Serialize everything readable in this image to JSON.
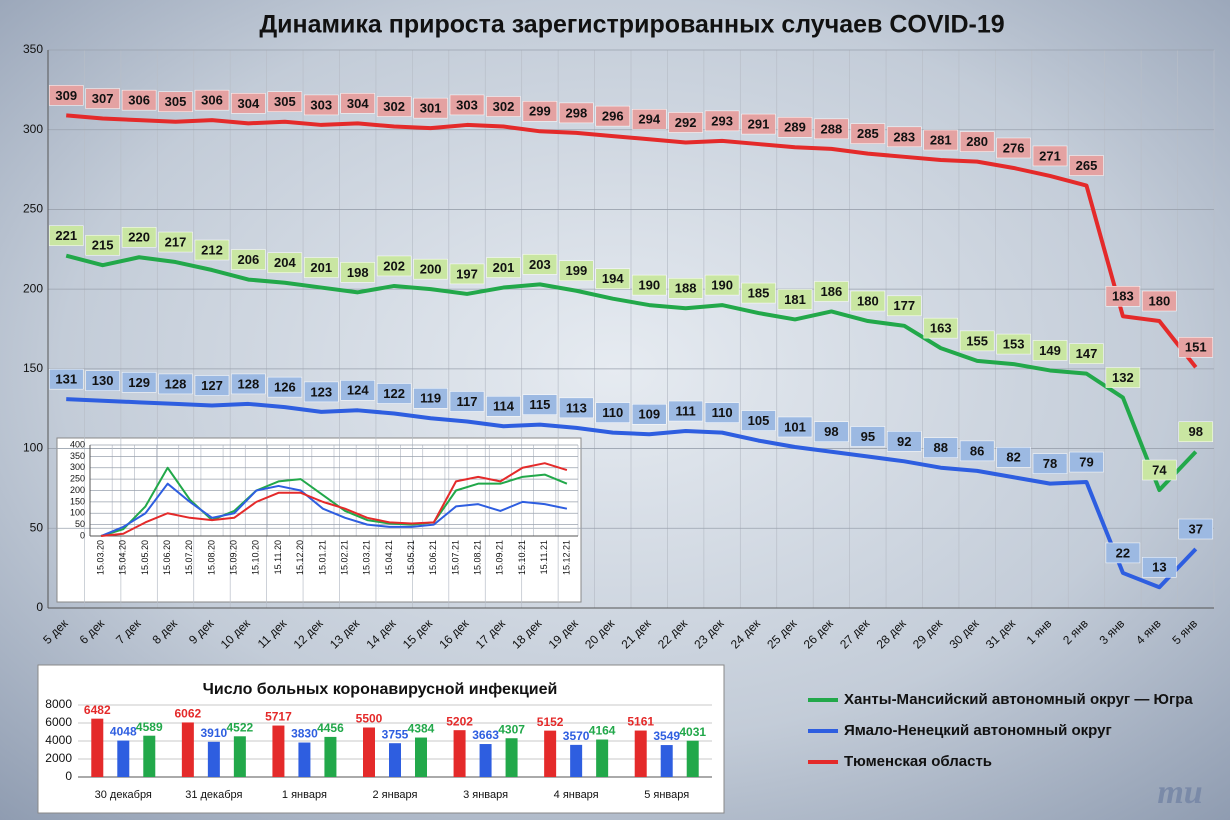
{
  "chart_data": [
    {
      "type": "line",
      "title": "Динамика прироста зарегистрированных случаев COVID-19",
      "categories": [
        "5 дек",
        "6 дек",
        "7 дек",
        "8 дек",
        "9 дек",
        "10 дек",
        "11 дек",
        "12 дек",
        "13 дек",
        "14 дек",
        "15 дек",
        "16 дек",
        "17 дек",
        "18 дек",
        "19 дек",
        "20 дек",
        "21 дек",
        "22 дек",
        "23 дек",
        "24 дек",
        "25 дек",
        "26 дек",
        "27 дек",
        "28 дек",
        "29 дек",
        "30 дек",
        "31 дек",
        "1 янв",
        "2 янв",
        "3 янв",
        "4 янв",
        "5 янв"
      ],
      "series": [
        {
          "name": "Ханты-Мансийский автономный округ — Югра",
          "color": "#22a84a",
          "label_color": "#c9e6a2",
          "values": [
            221,
            215,
            220,
            217,
            212,
            206,
            204,
            201,
            198,
            202,
            200,
            197,
            201,
            203,
            199,
            194,
            190,
            188,
            190,
            185,
            181,
            186,
            180,
            177,
            163,
            155,
            153,
            149,
            147,
            132,
            74,
            98
          ]
        },
        {
          "name": "Ямало-Ненецкий автономный округ",
          "color": "#2e5ee0",
          "label_color": "#9cb9e2",
          "values": [
            131,
            130,
            129,
            128,
            127,
            128,
            126,
            123,
            124,
            122,
            119,
            117,
            114,
            115,
            113,
            110,
            109,
            111,
            110,
            105,
            101,
            98,
            95,
            92,
            88,
            86,
            82,
            78,
            79,
            22,
            13,
            37
          ]
        },
        {
          "name": "Тюменская область",
          "color": "#e42a2a",
          "label_color": "#e4a2a2",
          "values": [
            309,
            307,
            306,
            305,
            306,
            304,
            305,
            303,
            304,
            302,
            301,
            303,
            302,
            299,
            298,
            296,
            294,
            292,
            293,
            291,
            289,
            288,
            285,
            283,
            281,
            280,
            276,
            271,
            265,
            183,
            180,
            151
          ]
        }
      ],
      "ylim": [
        0,
        350
      ],
      "yticks": [
        0,
        50,
        100,
        150,
        200,
        250,
        300,
        350
      ],
      "grid": true,
      "legend_position": "bottom-right"
    },
    {
      "type": "line",
      "categories": [
        "15.03.20",
        "15.04.20",
        "15.05.20",
        "15.06.20",
        "15.07.20",
        "15.08.20",
        "15.09.20",
        "15.10.20",
        "15.11.20",
        "15.12.20",
        "15.01.21",
        "15.02.21",
        "15.03.21",
        "15.04.21",
        "15.05.21",
        "15.06.21",
        "15.07.21",
        "15.08.21",
        "15.09.21",
        "15.10.21",
        "15.11.21",
        "15.12.21"
      ],
      "series": [
        {
          "color": "#22a84a",
          "values": [
            0,
            30,
            130,
            300,
            160,
            70,
            110,
            200,
            240,
            250,
            180,
            110,
            70,
            55,
            50,
            60,
            200,
            230,
            230,
            260,
            270,
            230
          ]
        },
        {
          "color": "#2e5ee0",
          "values": [
            0,
            40,
            100,
            230,
            150,
            80,
            100,
            200,
            220,
            200,
            120,
            80,
            50,
            40,
            40,
            50,
            130,
            140,
            110,
            150,
            140,
            120
          ]
        },
        {
          "color": "#e42a2a",
          "values": [
            0,
            10,
            60,
            100,
            80,
            70,
            80,
            150,
            190,
            190,
            150,
            120,
            80,
            60,
            55,
            60,
            240,
            260,
            240,
            300,
            320,
            290
          ]
        }
      ],
      "ylim": [
        0,
        400
      ],
      "yticks": [
        0,
        50,
        100,
        150,
        200,
        250,
        300,
        350,
        400
      ],
      "grid": true
    },
    {
      "type": "bar",
      "title": "Число больных коронавирусной  инфекцией",
      "categories": [
        "30 декабря",
        "31 декабря",
        "1 января",
        "2 января",
        "3 января",
        "4 января",
        "5 января"
      ],
      "series": [
        {
          "color": "#e42a2a",
          "values": [
            6482,
            6062,
            5717,
            5500,
            5202,
            5152,
            5161
          ]
        },
        {
          "color": "#2e5ee0",
          "values": [
            4048,
            3910,
            3830,
            3755,
            3663,
            3570,
            3549
          ]
        },
        {
          "color": "#22a84a",
          "values": [
            4589,
            4522,
            4456,
            4384,
            4307,
            4164,
            4031
          ]
        }
      ],
      "ylim": [
        0,
        8000
      ],
      "yticks": [
        0,
        2000,
        4000,
        6000,
        8000
      ],
      "grid": true
    }
  ],
  "logo": "mu"
}
